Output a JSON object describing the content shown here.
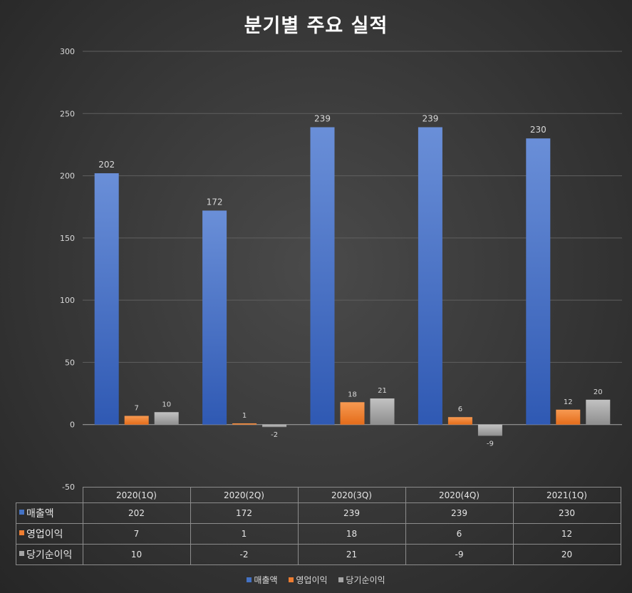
{
  "chart_data": {
    "type": "bar",
    "title": "분기별 주요 실적",
    "categories": [
      "2020(1Q)",
      "2020(2Q)",
      "2020(3Q)",
      "2020(4Q)",
      "2021(1Q)"
    ],
    "series": [
      {
        "name": "매출액",
        "values": [
          202,
          172,
          239,
          239,
          230
        ],
        "color": "#4472c4"
      },
      {
        "name": "영업이익",
        "values": [
          7,
          1,
          18,
          6,
          12
        ],
        "color": "#ed7d31"
      },
      {
        "name": "당기순이익",
        "values": [
          10,
          -2,
          21,
          -9,
          20
        ],
        "color": "#a5a5a5"
      }
    ],
    "ylim": [
      -50,
      300
    ],
    "yticks": [
      300,
      250,
      200,
      150,
      100,
      50,
      0,
      -50
    ],
    "grid": true,
    "legend": "bottom",
    "data_table": true
  }
}
